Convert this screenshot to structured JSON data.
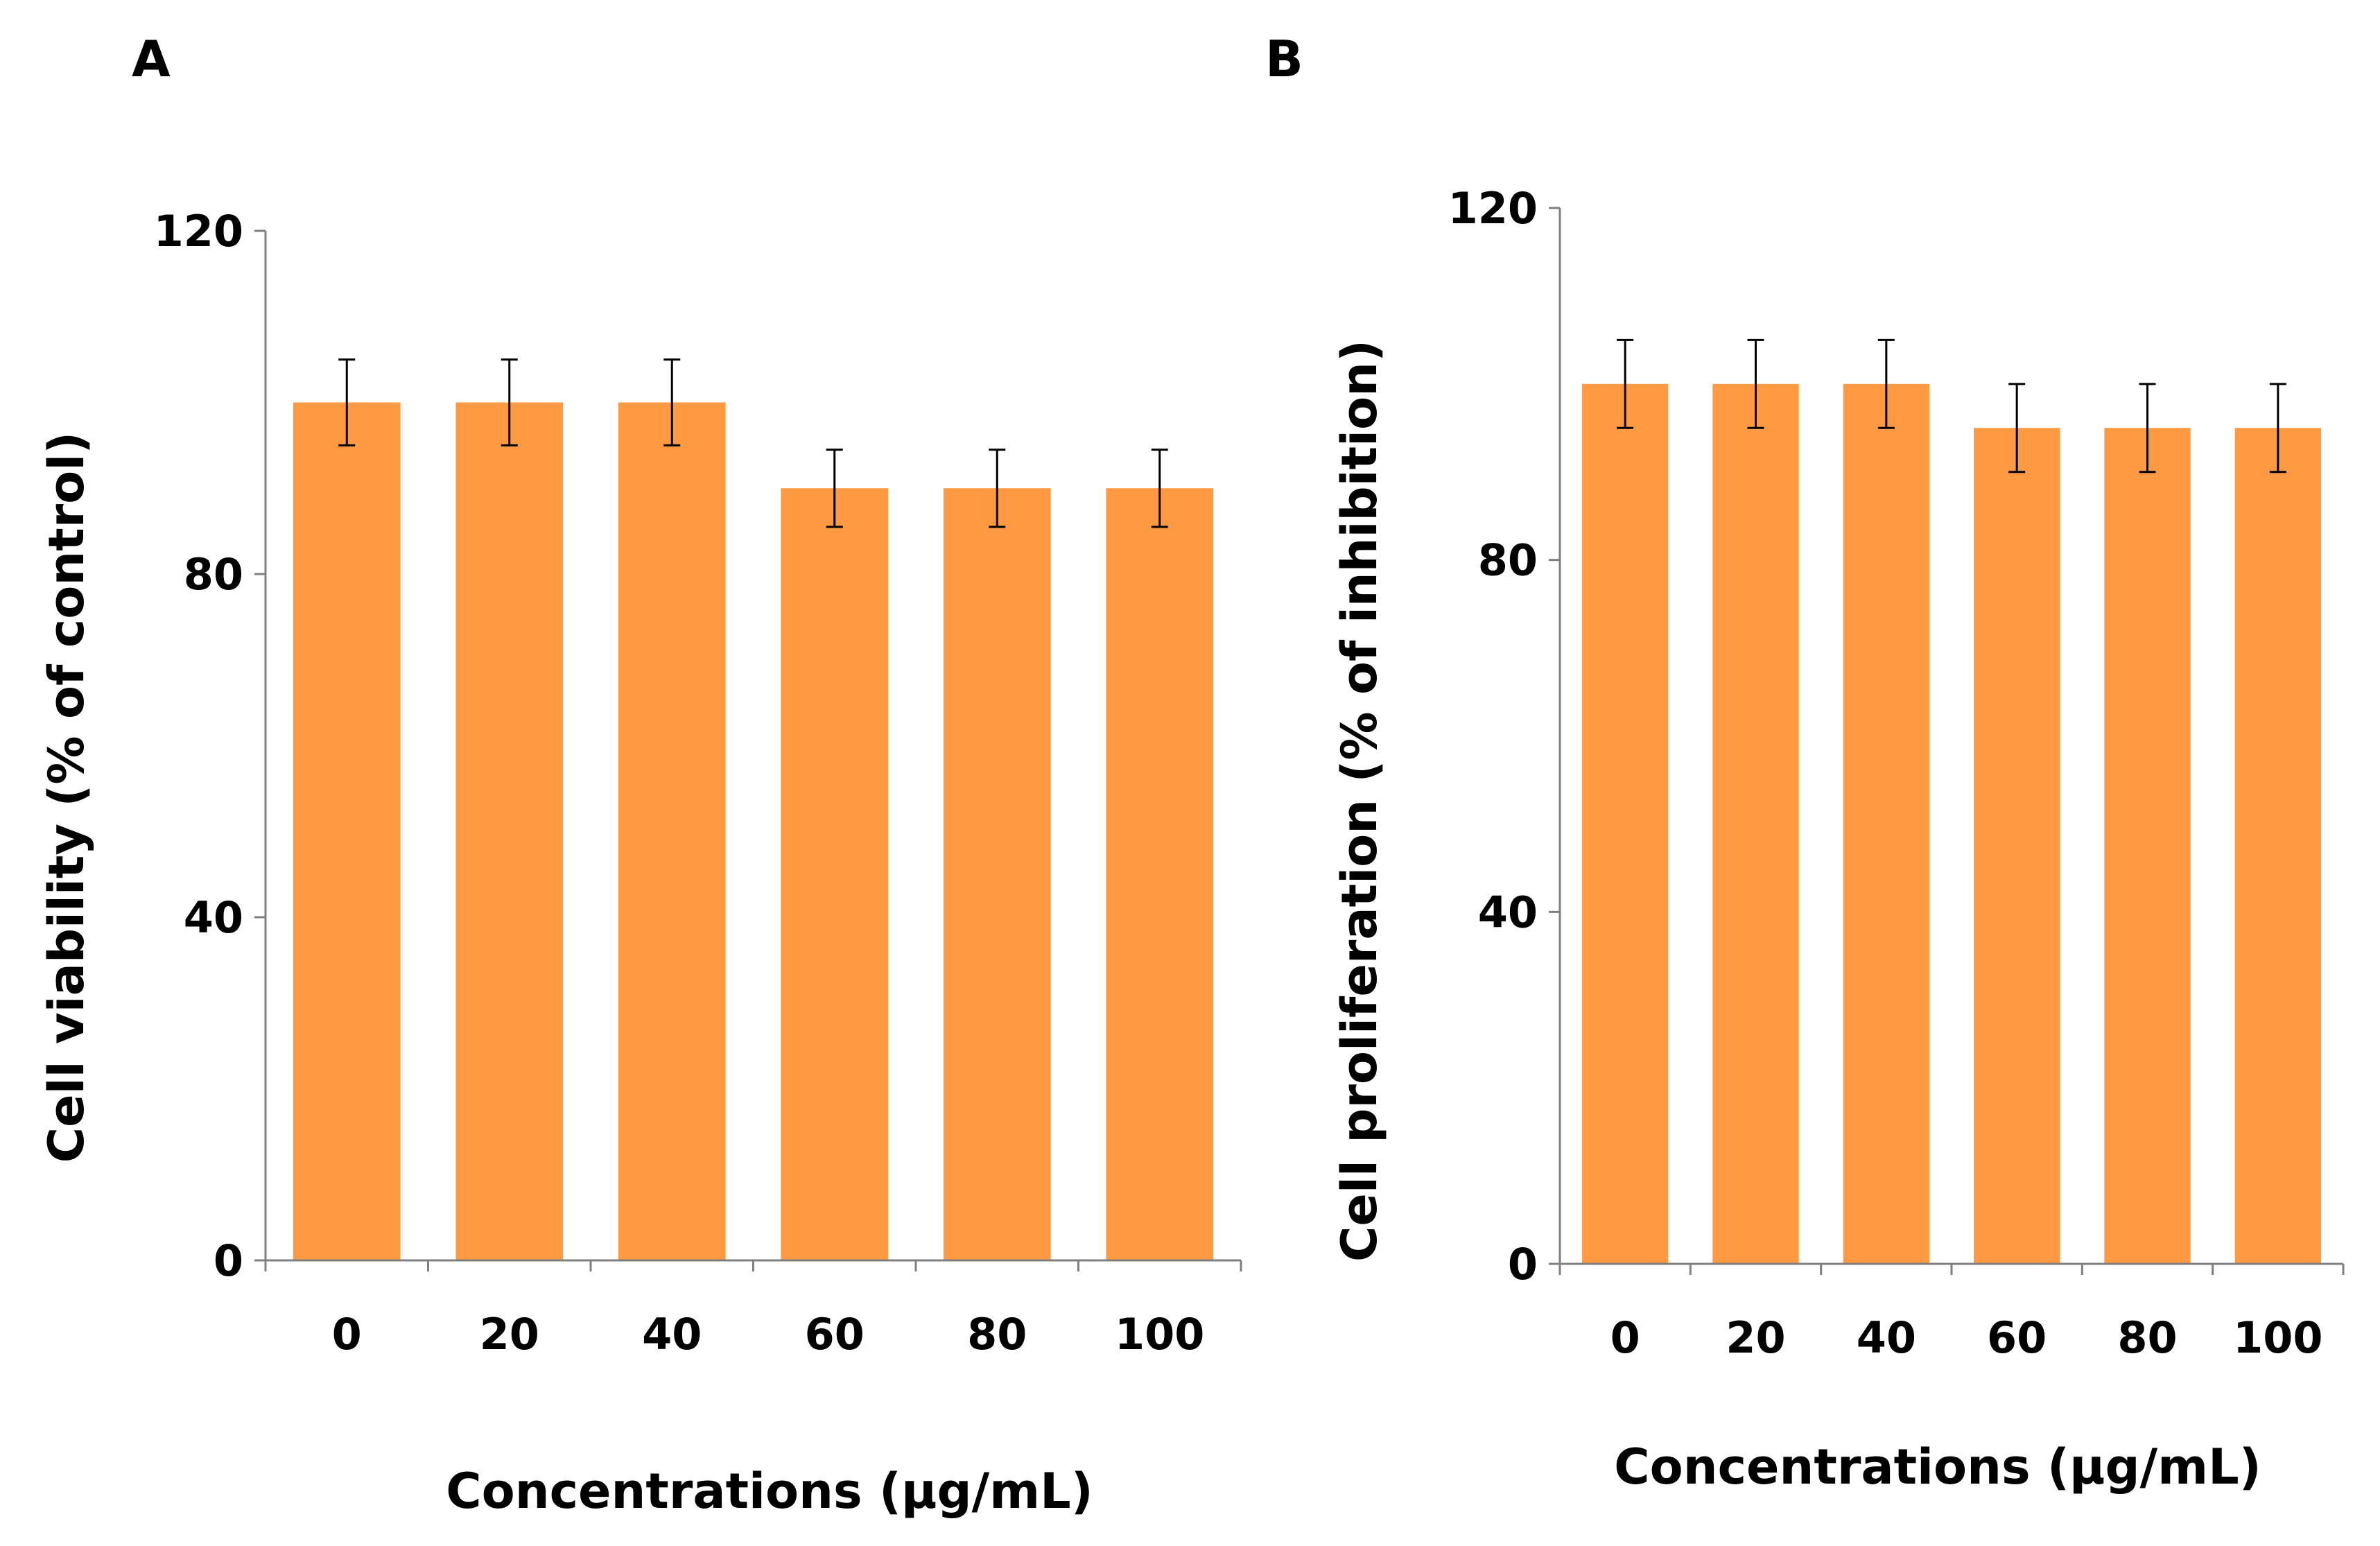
{
  "chart_data": [
    {
      "panel_label": "A",
      "type": "bar",
      "categories": [
        "0",
        "20",
        "40",
        "60",
        "80",
        "100"
      ],
      "values": [
        100,
        100,
        100,
        90,
        90,
        90
      ],
      "errors": [
        5,
        5,
        5,
        4.5,
        4.5,
        4.5
      ],
      "yticks": [
        "0",
        "40",
        "80",
        "120"
      ],
      "ylim": [
        0,
        120
      ],
      "title": "",
      "xlabel": "Concentrations (μg/mL)",
      "ylabel": "Cell viability (% of control)",
      "grid": false,
      "legend": "none",
      "bar_color": "#FF9A42"
    },
    {
      "panel_label": "B",
      "type": "bar",
      "categories": [
        "0",
        "20",
        "40",
        "60",
        "80",
        "100"
      ],
      "values": [
        100,
        100,
        100,
        95,
        95,
        95
      ],
      "errors": [
        5,
        5,
        5,
        5,
        5,
        5
      ],
      "yticks": [
        "0",
        "40",
        "80",
        "120"
      ],
      "ylim": [
        0,
        120
      ],
      "title": "",
      "xlabel": "Concentrations (μg/mL)",
      "ylabel": "Cell proliferation (% of inhibition)",
      "grid": false,
      "legend": "none",
      "bar_color": "#FF9A42"
    }
  ]
}
